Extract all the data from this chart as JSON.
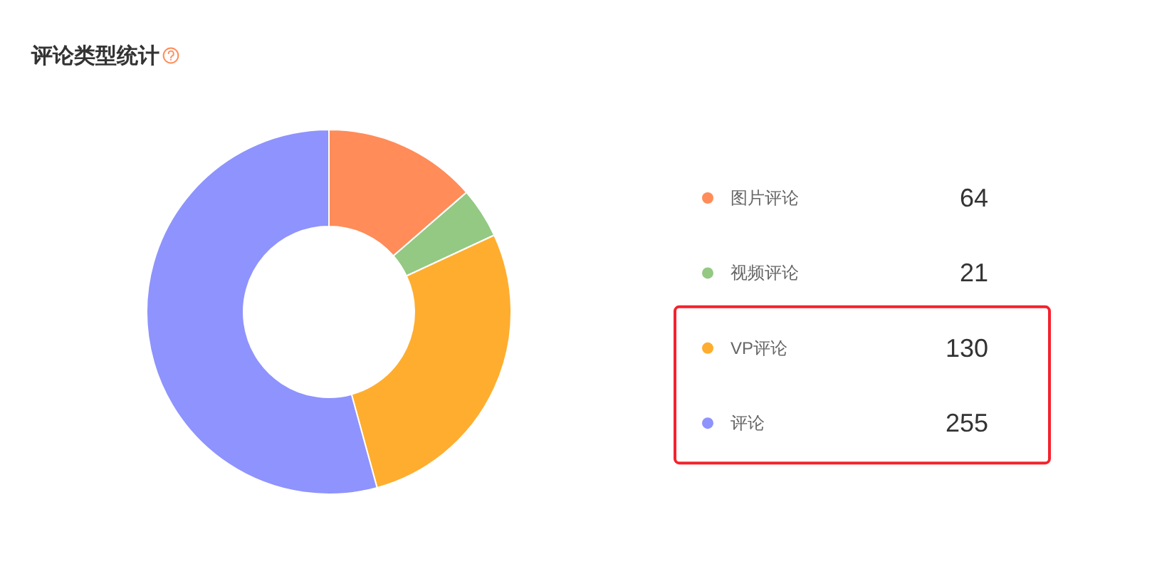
{
  "chart_data": {
    "type": "donut",
    "title": "评论类型统计",
    "categories": [
      "图片评论",
      "视频评论",
      "VP评论",
      "评论"
    ],
    "values": [
      64,
      21,
      130,
      255
    ],
    "colors": [
      "#ff8c59",
      "#93c982",
      "#ffad2f",
      "#8e93fd"
    ],
    "data_labels": true,
    "legend": "right"
  }
}
